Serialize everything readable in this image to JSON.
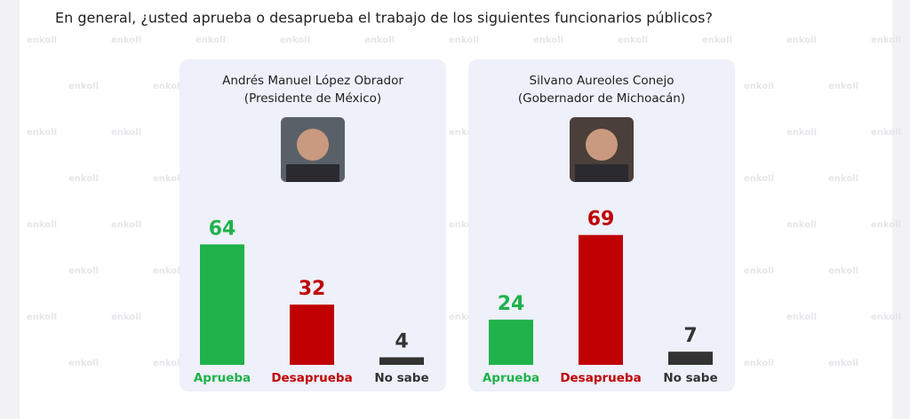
{
  "question": "En general, ¿usted aprueba o desaprueba el trabajo de los siguientes funcionarios públicos?",
  "watermark": "enkoll",
  "chart_data": [
    {
      "type": "bar",
      "title": "Andrés Manuel López Obrador",
      "subtitle": "(Presidente de México)",
      "categories": [
        "Aprueba",
        "Desaprueba",
        "No sabe"
      ],
      "values": [
        64,
        32,
        4
      ],
      "colors": [
        "#1fb24a",
        "#c00000",
        "#333333"
      ]
    },
    {
      "type": "bar",
      "title": "Silvano Aureoles Conejo",
      "subtitle": "(Gobernador de Michoacán)",
      "categories": [
        "Aprueba",
        "Desaprueba",
        "No sabe"
      ],
      "values": [
        24,
        69,
        7
      ],
      "colors": [
        "#1fb24a",
        "#c00000",
        "#333333"
      ]
    }
  ]
}
